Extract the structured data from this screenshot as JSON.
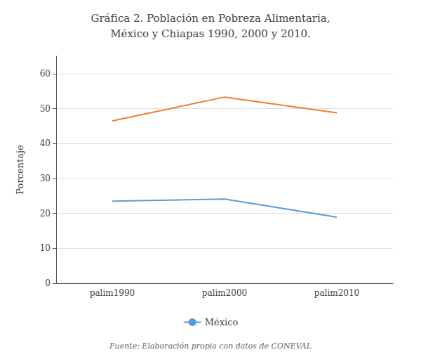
{
  "chart_data": {
    "type": "line",
    "title": "Gráfica 2. Población en Pobreza Alimentaria,\nMéxico y Chiapas 1990, 2000 y 2010.",
    "ylabel": "Porcentaje",
    "annotation": "Fuente: Elaboración propia con datos de CONEVAL",
    "categories": [
      "palim1990",
      "palim2000",
      "palim2010"
    ],
    "series": [
      {
        "color": "#ED7D31",
        "values": [
          46.5,
          53.3,
          48.8
        ]
      },
      {
        "name": "México",
        "color": "#5B9BD5",
        "values": [
          23.5,
          24.1,
          18.9
        ]
      }
    ],
    "ylim": [
      0,
      65
    ],
    "yticks": [
      0,
      10,
      20,
      30,
      40,
      50,
      60
    ],
    "grid": true,
    "legend": "bottom"
  }
}
